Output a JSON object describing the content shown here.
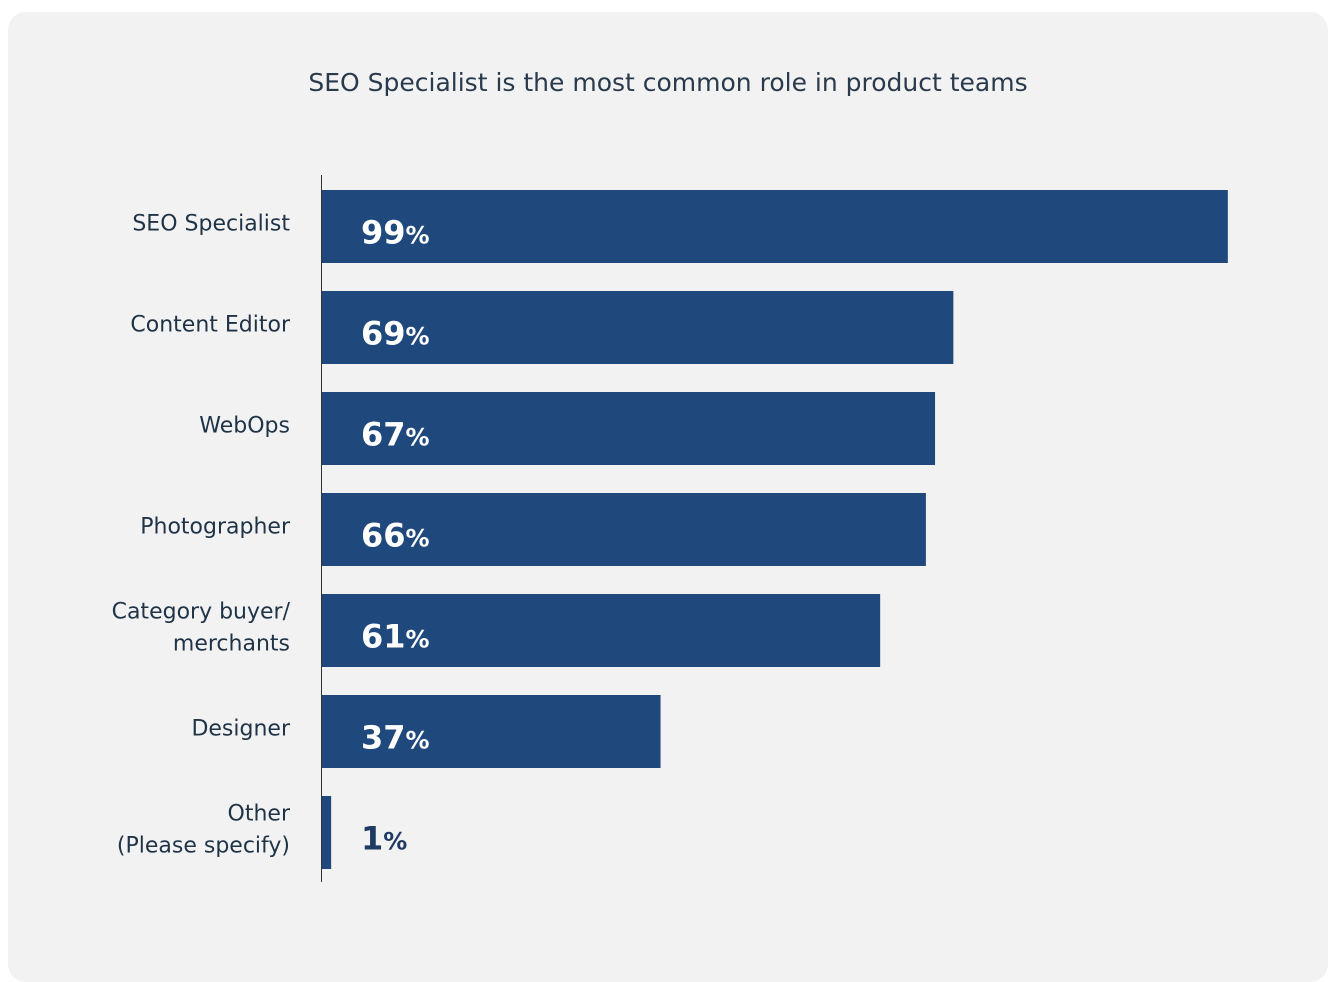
{
  "chart_data": {
    "type": "bar",
    "orientation": "horizontal",
    "title": "SEO Specialist is the most common role in product teams",
    "categories": [
      [
        "SEO Specialist"
      ],
      [
        "Content Editor"
      ],
      [
        "WebOps"
      ],
      [
        "Photographer"
      ],
      [
        "Category buyer/",
        "merchants"
      ],
      [
        "Designer"
      ],
      [
        "Other",
        "(Please specify)"
      ]
    ],
    "values": [
      99,
      69,
      67,
      66,
      61,
      37,
      1
    ],
    "value_suffix": "%",
    "xlim": [
      0,
      100
    ],
    "grid": false,
    "legend": "none",
    "colors": {
      "bar": "#1f497d",
      "label_inside": "#ffffff",
      "label_outside": "#1f3b63",
      "axis": "#333333"
    }
  }
}
